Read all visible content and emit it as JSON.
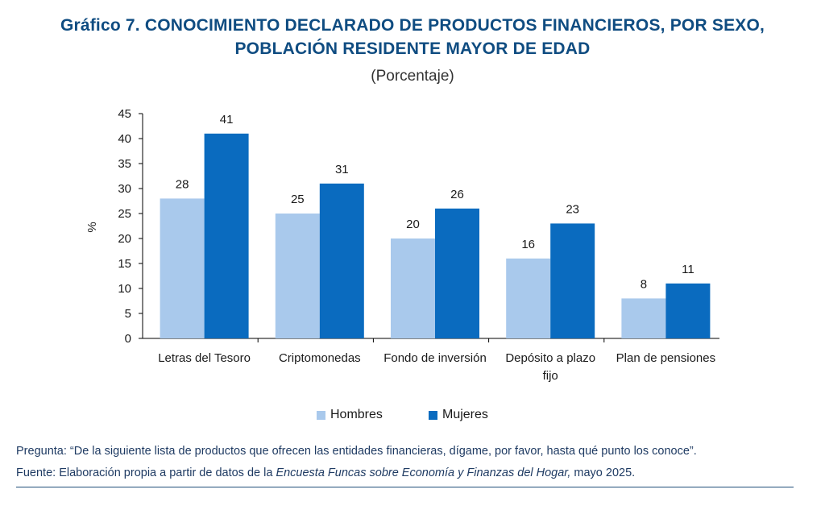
{
  "title_line1": "Gráfico 7. CONOCIMIENTO DECLARADO DE PRODUCTOS FINANCIEROS, POR SEXO,",
  "title_line2": "POBLACIÓN RESIDENTE MAYOR DE EDAD",
  "subtitle": "(Porcentaje)",
  "question_note": "Pregunta: “De la siguiente lista de productos que ofrecen las entidades financieras, dígame, por favor, hasta qué punto los conoce”.",
  "source_note": {
    "prefix": "Fuente: Elaboración propia a partir de datos de la ",
    "italic": "Encuesta Funcas sobre Economía y Finanzas del Hogar,",
    "suffix": " mayo 2025."
  },
  "chart_data": {
    "type": "bar",
    "ylabel": "%",
    "xlabel": "",
    "ylim": [
      0,
      45
    ],
    "yticks": [
      0,
      5,
      10,
      15,
      20,
      25,
      30,
      35,
      40,
      45
    ],
    "grid": false,
    "legend_position": "bottom",
    "categories": [
      [
        "Letras del Tesoro"
      ],
      [
        "Criptomonedas"
      ],
      [
        "Fondo de inversión"
      ],
      [
        "Depósito a plazo",
        "fijo"
      ],
      [
        "Plan de pensiones"
      ]
    ],
    "series": [
      {
        "name": "Hombres",
        "color": "#a9c9ec",
        "values": [
          28,
          25,
          20,
          16,
          8
        ]
      },
      {
        "name": "Mujeres",
        "color": "#0a6bbf",
        "values": [
          41,
          31,
          26,
          23,
          11
        ]
      }
    ]
  }
}
